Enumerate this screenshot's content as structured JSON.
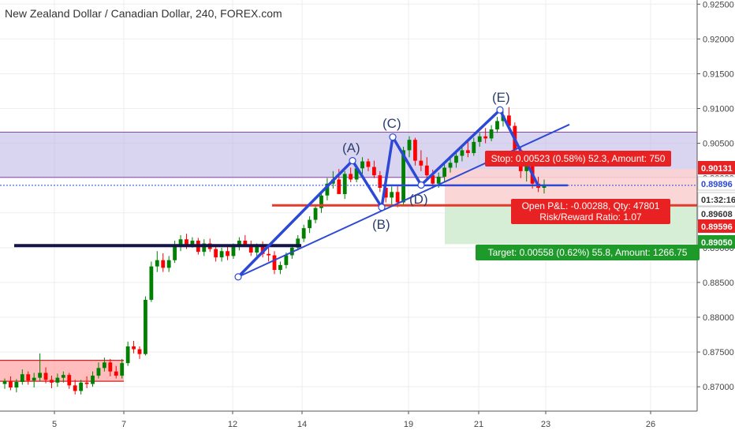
{
  "header": {
    "title": "New Zealand Dollar / Canadian Dollar, 240, FOREX.com"
  },
  "colors": {
    "up": "#008000",
    "down": "#ff0000",
    "blue_line": "#2c48d6",
    "navy_line": "#14144b",
    "red_line": "#e23c2c",
    "resistance_zone": "#b9b2e6",
    "demand_zone": "#ff9a9a",
    "stop_zone": "#fbd1d1",
    "target_zone": "#d2ecd2",
    "stop_label": "#e82222",
    "target_label": "#1e9a2a"
  },
  "position": {
    "stop_text": "Stop: 0.00523 (0.58%) 52.3, Amount: 750",
    "pnl_text": "Open P&L: -0.00288, Qty: 47801",
    "rr_text": "Risk/Reward Ratio: 1.07",
    "target_text": "Target: 0.00558 (0.62%) 55.8, Amount: 1266.75"
  },
  "price_badges": [
    {
      "value": "0.90131",
      "bg": "#e82222",
      "fg": "#ffffff"
    },
    {
      "value": "0.89896",
      "bg": "#ffffff",
      "fg": "#2c48d6"
    },
    {
      "value": "01:32:16",
      "bg": "#ffffff",
      "fg": "#333333"
    },
    {
      "value": "0.89608",
      "bg": "#ffffff",
      "fg": "#333333"
    },
    {
      "value": "0.89596",
      "bg": "#e82222",
      "fg": "#ffffff"
    },
    {
      "value": "0.89050",
      "bg": "#1e9a2a",
      "fg": "#ffffff"
    }
  ],
  "chart_data": {
    "type": "candlestick",
    "title": "New Zealand Dollar / Canadian Dollar, 240, FOREX.com",
    "x_ticks": [
      "5",
      "7",
      "12",
      "14",
      "19",
      "21",
      "23",
      "26"
    ],
    "y_ticks": [
      "0.87000",
      "0.87500",
      "0.88000",
      "0.88500",
      "0.89000",
      "0.89500",
      "0.90000",
      "0.90500",
      "0.91000",
      "0.91500",
      "0.92000",
      "0.92500"
    ],
    "ylim": [
      0.8665,
      0.9256
    ],
    "grid": true,
    "pattern_labels": [
      "(A)",
      "(B)",
      "(C)",
      "(D)",
      "(E)"
    ],
    "candles_ohlc": [
      [
        0.8704,
        0.8712,
        0.8697,
        0.8708
      ],
      [
        0.8708,
        0.8715,
        0.8695,
        0.8699
      ],
      [
        0.8699,
        0.8711,
        0.8692,
        0.8707
      ],
      [
        0.8707,
        0.8725,
        0.8703,
        0.8718
      ],
      [
        0.8718,
        0.8722,
        0.8703,
        0.8709
      ],
      [
        0.8709,
        0.872,
        0.8699,
        0.8713
      ],
      [
        0.8713,
        0.8748,
        0.8708,
        0.872
      ],
      [
        0.872,
        0.8728,
        0.8705,
        0.871
      ],
      [
        0.871,
        0.8716,
        0.8698,
        0.8706
      ],
      [
        0.8706,
        0.8719,
        0.87,
        0.8713
      ],
      [
        0.8713,
        0.8722,
        0.8706,
        0.8717
      ],
      [
        0.8717,
        0.872,
        0.8697,
        0.8702
      ],
      [
        0.8702,
        0.871,
        0.8689,
        0.8694
      ],
      [
        0.8694,
        0.871,
        0.8689,
        0.8706
      ],
      [
        0.8706,
        0.8715,
        0.8698,
        0.8704
      ],
      [
        0.8704,
        0.8722,
        0.87,
        0.8716
      ],
      [
        0.8716,
        0.8735,
        0.8712,
        0.8727
      ],
      [
        0.8727,
        0.8742,
        0.8722,
        0.8735
      ],
      [
        0.8735,
        0.874,
        0.8715,
        0.8722
      ],
      [
        0.8722,
        0.873,
        0.8712,
        0.8716
      ],
      [
        0.8716,
        0.874,
        0.8712,
        0.8734
      ],
      [
        0.8734,
        0.8765,
        0.873,
        0.8758
      ],
      [
        0.8758,
        0.8766,
        0.8748,
        0.8754
      ],
      [
        0.8754,
        0.8758,
        0.874,
        0.8747
      ],
      [
        0.8747,
        0.883,
        0.8745,
        0.8825
      ],
      [
        0.8825,
        0.888,
        0.8822,
        0.8873
      ],
      [
        0.8873,
        0.8895,
        0.8865,
        0.8882
      ],
      [
        0.8882,
        0.8892,
        0.8865,
        0.8871
      ],
      [
        0.8871,
        0.8888,
        0.8865,
        0.8882
      ],
      [
        0.8882,
        0.891,
        0.8878,
        0.8905
      ],
      [
        0.8905,
        0.8918,
        0.8895,
        0.8912
      ],
      [
        0.8912,
        0.892,
        0.8898,
        0.8903
      ],
      [
        0.8903,
        0.8915,
        0.89,
        0.891
      ],
      [
        0.891,
        0.8914,
        0.889,
        0.8894
      ],
      [
        0.8894,
        0.8912,
        0.8888,
        0.8906
      ],
      [
        0.8906,
        0.8913,
        0.8894,
        0.8898
      ],
      [
        0.8898,
        0.8904,
        0.888,
        0.8886
      ],
      [
        0.8886,
        0.89,
        0.888,
        0.8895
      ],
      [
        0.8895,
        0.8902,
        0.8882,
        0.8888
      ],
      [
        0.8888,
        0.8906,
        0.8884,
        0.8902
      ],
      [
        0.8902,
        0.8915,
        0.8896,
        0.891
      ],
      [
        0.891,
        0.8918,
        0.8902,
        0.8904
      ],
      [
        0.8904,
        0.891,
        0.8888,
        0.8893
      ],
      [
        0.8893,
        0.8906,
        0.8888,
        0.8902
      ],
      [
        0.8902,
        0.8909,
        0.8886,
        0.8891
      ],
      [
        0.8891,
        0.8905,
        0.888,
        0.8889
      ],
      [
        0.8889,
        0.8895,
        0.8862,
        0.8868
      ],
      [
        0.8868,
        0.888,
        0.8862,
        0.8875
      ],
      [
        0.8875,
        0.8893,
        0.887,
        0.8889
      ],
      [
        0.8889,
        0.8905,
        0.8884,
        0.89
      ],
      [
        0.89,
        0.8918,
        0.8896,
        0.8913
      ],
      [
        0.8913,
        0.8933,
        0.8908,
        0.8928
      ],
      [
        0.8928,
        0.8945,
        0.8921,
        0.894
      ],
      [
        0.894,
        0.8962,
        0.8935,
        0.8957
      ],
      [
        0.8957,
        0.898,
        0.895,
        0.8975
      ],
      [
        0.8975,
        0.9,
        0.8968,
        0.8992
      ],
      [
        0.8992,
        0.901,
        0.8985,
        0.8998
      ],
      [
        0.8998,
        0.9013,
        0.899,
        0.8977
      ],
      [
        0.8977,
        0.901,
        0.897,
        0.9006
      ],
      [
        0.9006,
        0.9015,
        0.8994,
        0.8998
      ],
      [
        0.8998,
        0.9018,
        0.8994,
        0.9014
      ],
      [
        0.9014,
        0.903,
        0.9006,
        0.9024
      ],
      [
        0.9024,
        0.9028,
        0.901,
        0.9016
      ],
      [
        0.9016,
        0.9025,
        0.9,
        0.9004
      ],
      [
        0.9004,
        0.901,
        0.898,
        0.8986
      ],
      [
        0.8986,
        0.9,
        0.8965,
        0.8972
      ],
      [
        0.8972,
        0.8988,
        0.896,
        0.898
      ],
      [
        0.898,
        0.899,
        0.8958,
        0.8965
      ],
      [
        0.8965,
        0.9045,
        0.896,
        0.904
      ],
      [
        0.904,
        0.906,
        0.903,
        0.9055
      ],
      [
        0.9055,
        0.9058,
        0.9018,
        0.9025
      ],
      [
        0.9025,
        0.904,
        0.901,
        0.9018
      ],
      [
        0.9018,
        0.903,
        0.8998,
        0.9004
      ],
      [
        0.9004,
        0.9012,
        0.8985,
        0.8992
      ],
      [
        0.8992,
        0.9008,
        0.8986,
        0.9002
      ],
      [
        0.9002,
        0.902,
        0.8995,
        0.9015
      ],
      [
        0.9015,
        0.9028,
        0.9008,
        0.9022
      ],
      [
        0.9022,
        0.9038,
        0.9015,
        0.9032
      ],
      [
        0.9032,
        0.9046,
        0.9024,
        0.904
      ],
      [
        0.904,
        0.9052,
        0.903,
        0.9036
      ],
      [
        0.9036,
        0.9058,
        0.9032,
        0.9052
      ],
      [
        0.9052,
        0.9065,
        0.9045,
        0.906
      ],
      [
        0.906,
        0.9072,
        0.905,
        0.9057
      ],
      [
        0.9057,
        0.9076,
        0.9053,
        0.907
      ],
      [
        0.907,
        0.9088,
        0.9065,
        0.9082
      ],
      [
        0.9082,
        0.9096,
        0.9074,
        0.909
      ],
      [
        0.909,
        0.9102,
        0.907,
        0.9075
      ],
      [
        0.9075,
        0.908,
        0.903,
        0.904
      ],
      [
        0.904,
        0.9045,
        0.9,
        0.901
      ],
      [
        0.901,
        0.903,
        0.8995,
        0.9018
      ],
      [
        0.9018,
        0.9026,
        0.8985,
        0.8992
      ],
      [
        0.8992,
        0.9002,
        0.898,
        0.8986
      ],
      [
        0.8986,
        0.8998,
        0.8978,
        0.899
      ]
    ]
  }
}
